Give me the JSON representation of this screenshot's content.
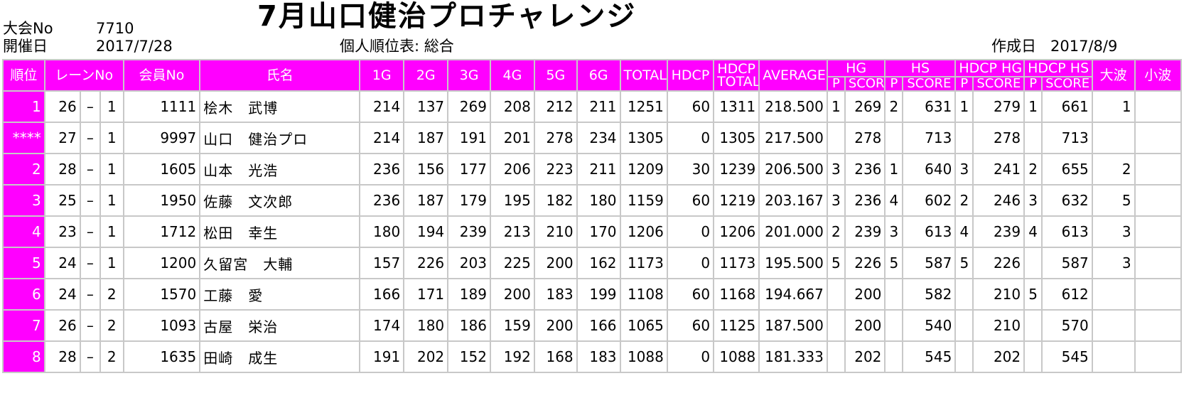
{
  "header": {
    "meet_no_label": "大会No",
    "meet_no_value": "7710",
    "date_label": "開催日",
    "date_value": "2017/7/28",
    "title": "7月山口健治プロチャレンジ",
    "list_label": "個人順位表: 総合",
    "created_label": "作成日",
    "created_value": "2017/8/9"
  },
  "columns": {
    "rank": "順位",
    "lane": "レーンNo",
    "member": "会員No",
    "name": "氏名",
    "g1": "1G",
    "g2": "2G",
    "g3": "3G",
    "g4": "4G",
    "g5": "5G",
    "g6": "6G",
    "total": "TOTAL",
    "hdcp": "HDCP",
    "hdcp_total_1": "HDCP",
    "hdcp_total_2": "TOTAL",
    "average": "AVERAGE",
    "hg": "HG",
    "hs": "HS",
    "hdcp_hg": "HDCP HG",
    "hdcp_hs": "HDCP HS",
    "big_wave": "大波",
    "small_wave": "小波",
    "p": "P",
    "score": "SCORE"
  },
  "rows": [
    {
      "rank": "1",
      "lane": "26",
      "dash": "–",
      "sub": "1",
      "member": "1111",
      "name": "桧木　武博",
      "g": [
        "214",
        "137",
        "269",
        "208",
        "212",
        "211"
      ],
      "total": "1251",
      "hdcp": "60",
      "hdcp_total": "1311",
      "average": "218.500",
      "hg_p": "1",
      "hg": "269",
      "hs_p": "2",
      "hs": "631",
      "hhg_p": "1",
      "hhg": "279",
      "hhs_p": "1",
      "hhs": "661",
      "big": "1",
      "small": ""
    },
    {
      "rank": "****",
      "lane": "27",
      "dash": "–",
      "sub": "1",
      "member": "9997",
      "name": "山口　健治プロ",
      "g": [
        "214",
        "187",
        "191",
        "201",
        "278",
        "234"
      ],
      "total": "1305",
      "hdcp": "0",
      "hdcp_total": "1305",
      "average": "217.500",
      "hg_p": "",
      "hg": "278",
      "hs_p": "",
      "hs": "713",
      "hhg_p": "",
      "hhg": "278",
      "hhs_p": "",
      "hhs": "713",
      "big": "",
      "small": ""
    },
    {
      "rank": "2",
      "lane": "28",
      "dash": "–",
      "sub": "1",
      "member": "1605",
      "name": "山本　光浩",
      "g": [
        "236",
        "156",
        "177",
        "206",
        "223",
        "211"
      ],
      "total": "1209",
      "hdcp": "30",
      "hdcp_total": "1239",
      "average": "206.500",
      "hg_p": "3",
      "hg": "236",
      "hs_p": "1",
      "hs": "640",
      "hhg_p": "3",
      "hhg": "241",
      "hhs_p": "2",
      "hhs": "655",
      "big": "2",
      "small": ""
    },
    {
      "rank": "3",
      "lane": "25",
      "dash": "–",
      "sub": "1",
      "member": "1950",
      "name": "佐藤　文次郎",
      "g": [
        "236",
        "187",
        "179",
        "195",
        "182",
        "180"
      ],
      "total": "1159",
      "hdcp": "60",
      "hdcp_total": "1219",
      "average": "203.167",
      "hg_p": "3",
      "hg": "236",
      "hs_p": "4",
      "hs": "602",
      "hhg_p": "2",
      "hhg": "246",
      "hhs_p": "3",
      "hhs": "632",
      "big": "5",
      "small": ""
    },
    {
      "rank": "4",
      "lane": "23",
      "dash": "–",
      "sub": "1",
      "member": "1712",
      "name": "松田　幸生",
      "g": [
        "180",
        "194",
        "239",
        "213",
        "210",
        "170"
      ],
      "total": "1206",
      "hdcp": "0",
      "hdcp_total": "1206",
      "average": "201.000",
      "hg_p": "2",
      "hg": "239",
      "hs_p": "3",
      "hs": "613",
      "hhg_p": "4",
      "hhg": "239",
      "hhs_p": "4",
      "hhs": "613",
      "big": "3",
      "small": ""
    },
    {
      "rank": "5",
      "lane": "24",
      "dash": "–",
      "sub": "1",
      "member": "1200",
      "name": "久留宮　大輔",
      "g": [
        "157",
        "226",
        "203",
        "225",
        "200",
        "162"
      ],
      "total": "1173",
      "hdcp": "0",
      "hdcp_total": "1173",
      "average": "195.500",
      "hg_p": "5",
      "hg": "226",
      "hs_p": "5",
      "hs": "587",
      "hhg_p": "5",
      "hhg": "226",
      "hhs_p": "",
      "hhs": "587",
      "big": "3",
      "small": ""
    },
    {
      "rank": "6",
      "lane": "24",
      "dash": "–",
      "sub": "2",
      "member": "1570",
      "name": "工藤　愛",
      "g": [
        "166",
        "171",
        "189",
        "200",
        "183",
        "199"
      ],
      "total": "1108",
      "hdcp": "60",
      "hdcp_total": "1168",
      "average": "194.667",
      "hg_p": "",
      "hg": "200",
      "hs_p": "",
      "hs": "582",
      "hhg_p": "",
      "hhg": "210",
      "hhs_p": "5",
      "hhs": "612",
      "big": "",
      "small": ""
    },
    {
      "rank": "7",
      "lane": "26",
      "dash": "–",
      "sub": "2",
      "member": "1093",
      "name": "古屋　栄治",
      "g": [
        "174",
        "180",
        "186",
        "159",
        "200",
        "166"
      ],
      "total": "1065",
      "hdcp": "60",
      "hdcp_total": "1125",
      "average": "187.500",
      "hg_p": "",
      "hg": "200",
      "hs_p": "",
      "hs": "540",
      "hhg_p": "",
      "hhg": "210",
      "hhs_p": "",
      "hhs": "570",
      "big": "",
      "small": ""
    },
    {
      "rank": "8",
      "lane": "28",
      "dash": "–",
      "sub": "2",
      "member": "1635",
      "name": "田崎　成生",
      "g": [
        "191",
        "202",
        "152",
        "192",
        "168",
        "183"
      ],
      "total": "1088",
      "hdcp": "0",
      "hdcp_total": "1088",
      "average": "181.333",
      "hg_p": "",
      "hg": "202",
      "hs_p": "",
      "hs": "545",
      "hhg_p": "",
      "hhg": "202",
      "hhs_p": "",
      "hhs": "545",
      "big": "",
      "small": ""
    }
  ]
}
